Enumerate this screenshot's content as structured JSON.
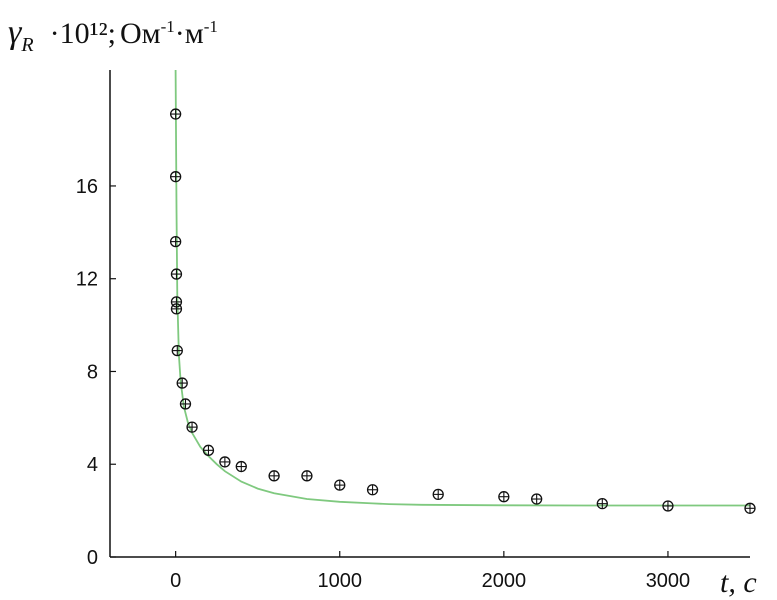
{
  "chart_data": {
    "type": "scatter",
    "ylabel": {
      "symbol": "γ",
      "subscript": "R",
      "multiplier": "·10¹²;",
      "unit_main": "Ом",
      "unit_sup1": "-1",
      "unit_mid": "·м",
      "unit_sup2": "-1"
    },
    "xlabel": "t, c",
    "xlim": [
      -400,
      3500
    ],
    "ylim": [
      0,
      21
    ],
    "xticks": [
      0,
      1000,
      2000,
      3000
    ],
    "yticks": [
      0,
      4,
      8,
      12,
      16
    ],
    "grid": false,
    "series": [
      {
        "kind": "points",
        "color": "#111111",
        "x": [
          0,
          0,
          0,
          5,
          5,
          5,
          10,
          40,
          60,
          100,
          200,
          300,
          400,
          600,
          800,
          1000,
          1200,
          1600,
          2000,
          2200,
          2600,
          3000,
          3500
        ],
        "y": [
          19.1,
          16.4,
          13.6,
          12.2,
          11.0,
          10.7,
          8.9,
          7.5,
          6.6,
          5.6,
          4.6,
          4.1,
          3.9,
          3.5,
          3.5,
          3.1,
          2.9,
          2.7,
          2.6,
          2.5,
          2.3,
          2.2,
          2.1
        ]
      },
      {
        "kind": "fit-curve",
        "color": "#7fc97f",
        "x": [
          0,
          5,
          10,
          20,
          30,
          50,
          75,
          100,
          150,
          200,
          250,
          300,
          400,
          500,
          600,
          800,
          1000,
          1200,
          1300,
          1500,
          2000,
          2500,
          3000,
          3500
        ],
        "y": [
          21.0,
          15.0,
          11.2,
          8.7,
          7.6,
          6.5,
          5.8,
          5.35,
          4.75,
          4.35,
          4.0,
          3.7,
          3.25,
          2.95,
          2.75,
          2.5,
          2.38,
          2.31,
          2.28,
          2.25,
          2.23,
          2.22,
          2.22,
          2.22
        ]
      }
    ]
  }
}
